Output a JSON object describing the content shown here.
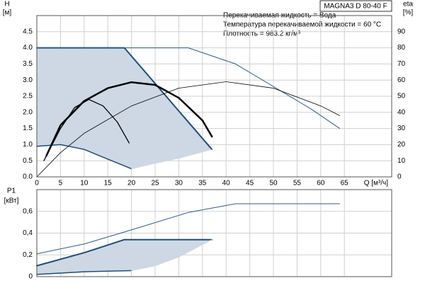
{
  "chart_data": [
    {
      "type": "line",
      "title": "MAGNA3 D 80-40 F",
      "annotations": [
        "Перекачиваемая жидкость = Вода",
        "Температура перекачиваемой жидкости = 60 °C",
        "Плотность = 983.2 кг/м³"
      ],
      "y_label": "H",
      "y_unit": "[м]",
      "y2_label": "eta",
      "y2_unit": "[%]",
      "x_label": "Q [м³/ч]",
      "xlim": [
        0,
        75
      ],
      "xticks": [
        0,
        5,
        10,
        15,
        20,
        25,
        30,
        35,
        40,
        45,
        50,
        55,
        60,
        65
      ],
      "ylim": [
        0,
        5
      ],
      "yticks": [
        {
          "value": 0,
          "label": "0.0"
        },
        0.5,
        {
          "value": 1,
          "label": "1.0"
        },
        1.5,
        {
          "value": 2,
          "label": "2.0"
        },
        2.5,
        {
          "value": 3,
          "label": "3.0"
        },
        3.5,
        {
          "value": 4,
          "label": "4.0"
        },
        4.5
      ],
      "y2lim": [
        0,
        100
      ],
      "y2ticks": [
        0,
        10,
        20,
        30,
        40,
        50,
        60,
        70,
        80,
        90
      ],
      "grid": true,
      "envelope_color": "#cdd8e4",
      "series": [
        {
          "color": "#1f4e79",
          "width": 2,
          "x": [
            0,
            18.5,
            37
          ],
          "values": [
            4,
            4,
            0.85
          ]
        },
        {
          "color": "#1f4e79",
          "width": 1.5,
          "x": [
            0,
            5,
            10,
            15,
            20
          ],
          "values": [
            0.95,
            1.0,
            0.85,
            0.55,
            0.25
          ]
        },
        {
          "color": "#cdd8e4",
          "width": 1,
          "x": [
            20,
            25,
            30,
            37
          ],
          "values": [
            0.25,
            0.42,
            0.58,
            0.85
          ]
        },
        {
          "color": "#2f5d8a",
          "width": 1,
          "x": [
            0,
            32,
            42,
            50,
            58,
            64
          ],
          "values": [
            4,
            4,
            3.5,
            2.8,
            2.1,
            1.5
          ]
        },
        {
          "color": "#000000",
          "width": 0.8,
          "axis": "y2",
          "x": [
            0,
            5,
            10,
            20,
            30,
            40,
            50,
            60,
            64
          ],
          "values": [
            0,
            15,
            27,
            44,
            55,
            59,
            55,
            44,
            38
          ]
        },
        {
          "color": "#000000",
          "width": 2.5,
          "axis": "y2",
          "x": [
            2,
            5,
            10,
            15,
            20,
            25,
            30,
            35,
            37
          ],
          "values": [
            13,
            32,
            47,
            55,
            58.7,
            57,
            49,
            35,
            25
          ]
        },
        {
          "color": "#000000",
          "width": 1.3,
          "axis": "y2",
          "x": [
            1.5,
            5,
            8,
            11,
            14,
            17,
            19.5
          ],
          "values": [
            10,
            30,
            43,
            48,
            44,
            34,
            21
          ]
        }
      ]
    },
    {
      "type": "line",
      "y_label": "P1",
      "y_unit": "[кВт]",
      "xlim": [
        0,
        75
      ],
      "ylim": [
        0,
        0.8
      ],
      "yticks": [
        0,
        {
          "value": 0.2,
          "label": "0,2"
        },
        {
          "value": 0.4,
          "label": "0,4"
        },
        {
          "value": 0.6,
          "label": "0,6"
        }
      ],
      "grid": true,
      "envelope_color": "#cdd8e4",
      "series": [
        {
          "color": "#1f4e79",
          "width": 2,
          "x": [
            0,
            10,
            18.5,
            37
          ],
          "values": [
            0.1,
            0.22,
            0.34,
            0.34
          ]
        },
        {
          "color": "#1f4e79",
          "width": 1.5,
          "x": [
            0,
            10,
            20
          ],
          "values": [
            0.02,
            0.045,
            0.055
          ]
        },
        {
          "color": "#cdd8e4",
          "width": 1,
          "x": [
            20,
            25,
            30,
            37
          ],
          "values": [
            0.055,
            0.1,
            0.18,
            0.34
          ]
        },
        {
          "color": "#2f5d8a",
          "width": 1,
          "x": [
            0,
            10,
            20,
            32,
            42,
            64
          ],
          "values": [
            0.21,
            0.3,
            0.43,
            0.59,
            0.67,
            0.67
          ]
        }
      ]
    }
  ]
}
